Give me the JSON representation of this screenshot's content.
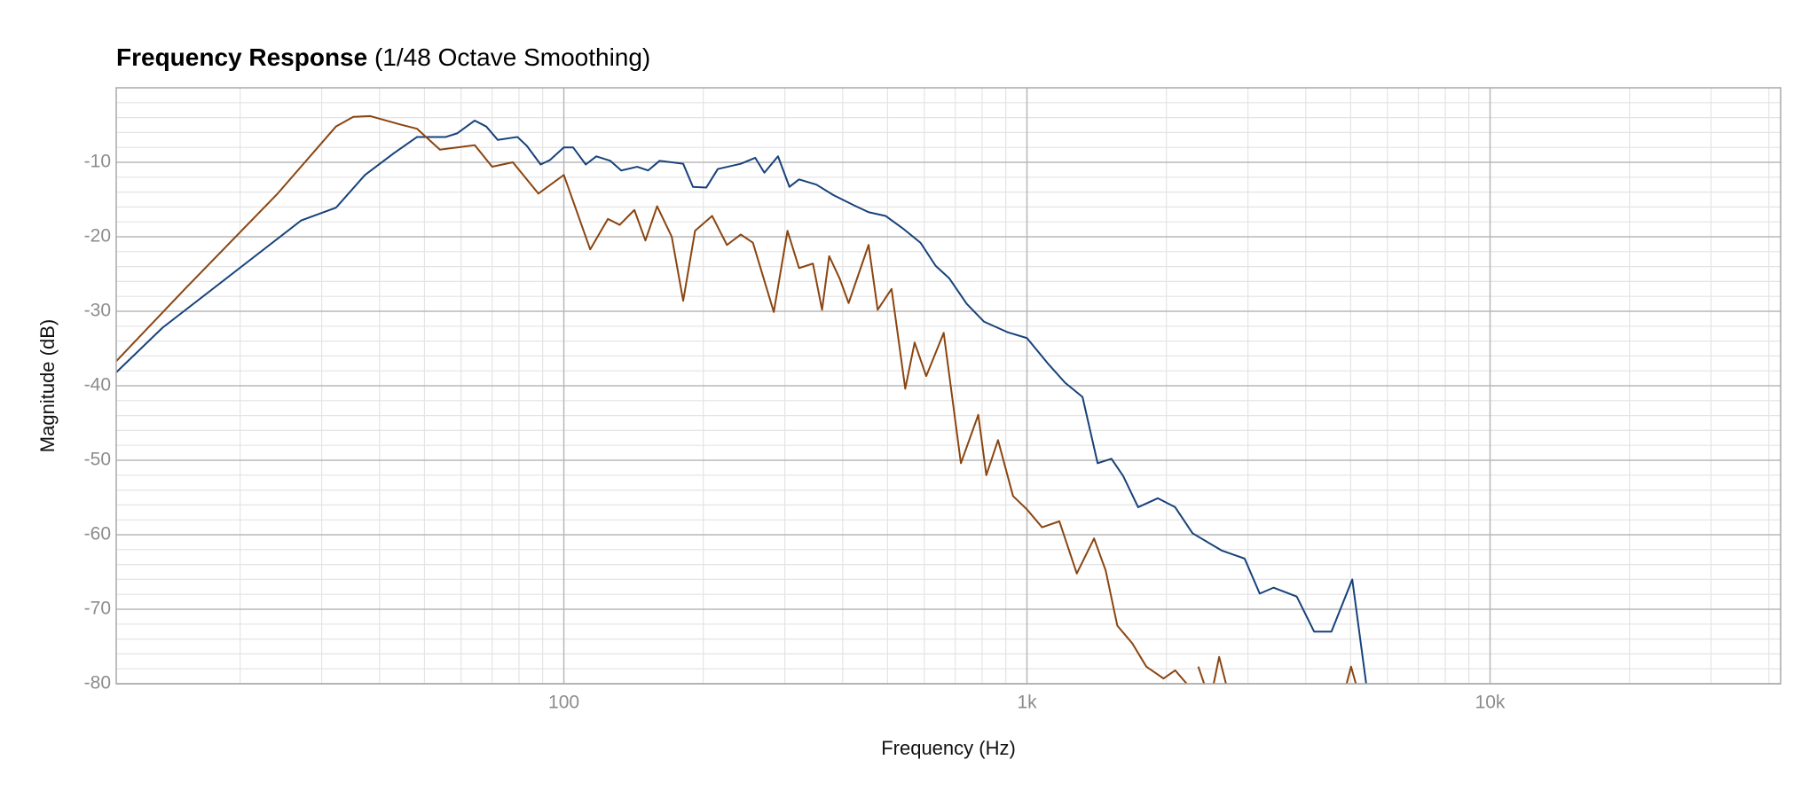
{
  "chart_data": {
    "type": "line",
    "title": "Frequency Response",
    "subtitle": "(1/48 Octave Smoothing)",
    "x_label": "Frequency (Hz)",
    "y_label": "Magnitude (dB)",
    "xscale": "log",
    "grid": true,
    "xlim": [
      10.8,
      42400
    ],
    "ylim": [
      -80,
      0
    ],
    "xticks": [
      100,
      {
        "value": 1000,
        "label": "1k"
      },
      {
        "value": 10000,
        "label": "10k"
      }
    ],
    "yticks": [
      -80,
      -70,
      -60,
      -50,
      -40,
      -30,
      -20,
      -10
    ],
    "xminorticks": [
      20,
      30,
      40,
      50,
      60,
      70,
      80,
      90,
      200,
      300,
      400,
      500,
      600,
      700,
      800,
      900,
      2000,
      3000,
      4000,
      5000,
      6000,
      7000,
      8000,
      9000,
      20000,
      30000,
      40000
    ],
    "yminorticks": [
      -78,
      -76,
      -74,
      -72,
      -68,
      -66,
      -64,
      -62,
      -58,
      -56,
      -54,
      -52,
      -48,
      -46,
      -44,
      -42,
      -38,
      -36,
      -34,
      -32,
      -28,
      -26,
      -24,
      -22,
      -18,
      -16,
      -14,
      -12,
      -8,
      -6,
      -4,
      -2
    ],
    "series": [
      {
        "color": "#17427a",
        "x": [
          10.8,
          13.6,
          19.2,
          27.1,
          32.2,
          37.2,
          42.9,
          48.2,
          55.6,
          58.9,
          64.2,
          68,
          72,
          79.4,
          83.2,
          89.1,
          93.3,
          100,
          104.7,
          111.5,
          117.5,
          126,
          133,
          144,
          152,
          161,
          181,
          190,
          203,
          215,
          241,
          259,
          271,
          290,
          307,
          322,
          351,
          382,
          424,
          455,
          495,
          540,
          589,
          635,
          680,
          741,
          808,
          907,
          1000,
          1109,
          1209,
          1318,
          1421,
          1522,
          1613,
          1738,
          1917,
          2089,
          2278,
          2630,
          2951,
          3181,
          3409,
          3824,
          4169,
          4544,
          5040,
          5401
        ],
        "values": [
          -38.2,
          -32.2,
          -25.0,
          -17.8,
          -16.1,
          -11.7,
          -8.8,
          -6.6,
          -6.6,
          -6.1,
          -4.4,
          -5.2,
          -7.0,
          -6.6,
          -7.8,
          -10.3,
          -9.7,
          -8.0,
          -8.0,
          -10.3,
          -9.2,
          -9.8,
          -11.1,
          -10.6,
          -11.1,
          -9.8,
          -10.2,
          -13.3,
          -13.4,
          -10.9,
          -10.2,
          -9.4,
          -11.4,
          -9.2,
          -13.3,
          -12.3,
          -13.0,
          -14.4,
          -15.8,
          -16.7,
          -17.2,
          -18.9,
          -20.8,
          -23.9,
          -25.6,
          -29.0,
          -31.4,
          -32.8,
          -33.6,
          -37.0,
          -39.6,
          -41.5,
          -50.4,
          -49.8,
          -52.1,
          -56.3,
          -55.1,
          -56.3,
          -59.8,
          -62.1,
          -63.2,
          -67.9,
          -67.1,
          -68.3,
          -73.0,
          -73.0,
          -66.0,
          -80.0
        ]
      },
      {
        "color": "#8a4510",
        "x": [
          10.8,
          15.2,
          24.1,
          32.2,
          35.1,
          38.2,
          44.2,
          48.2,
          54,
          58.9,
          64.2,
          70,
          77.6,
          88.1,
          100,
          114,
          124.5,
          132,
          142,
          150,
          159,
          171,
          181,
          192,
          209,
          225,
          241,
          256,
          284,
          304,
          322,
          345,
          361,
          374,
          394,
          412,
          455,
          476,
          510,
          546,
          572,
          606,
          661,
          720,
          785,
          817,
          866,
          933,
          1000,
          1078,
          1175,
          1281,
          1396,
          1479,
          1567,
          1689,
          1810,
          1972,
          2089,
          2213,
          2280,
          2344,
          2413,
          2480,
          2530,
          2600,
          2690,
          4800,
          4900,
          5010,
          5130
        ],
        "values": [
          -36.7,
          -27.0,
          -14.2,
          -5.2,
          -3.9,
          -3.8,
          -4.9,
          -5.5,
          -8.3,
          -8.0,
          -7.7,
          -10.6,
          -10.0,
          -14.2,
          -11.7,
          -21.7,
          -17.6,
          -18.4,
          -16.4,
          -20.5,
          -15.9,
          -20.0,
          -28.6,
          -19.2,
          -17.2,
          -21.1,
          -19.7,
          -20.8,
          -30.1,
          -19.2,
          -24.2,
          -23.6,
          -29.8,
          -22.6,
          -25.6,
          -28.9,
          -21.1,
          -29.8,
          -27.0,
          -40.4,
          -34.2,
          -38.7,
          -32.9,
          -50.4,
          -43.9,
          -52.0,
          -47.3,
          -54.8,
          -56.6,
          -59.0,
          -58.2,
          -65.2,
          -60.5,
          -64.8,
          -72.2,
          -74.6,
          -77.7,
          -79.3,
          -78.2,
          -80.0,
          null,
          -77.7,
          -80.0,
          null,
          -80.0,
          -76.4,
          -80.0,
          null,
          -80.0,
          -77.7,
          -80.0
        ]
      }
    ]
  }
}
